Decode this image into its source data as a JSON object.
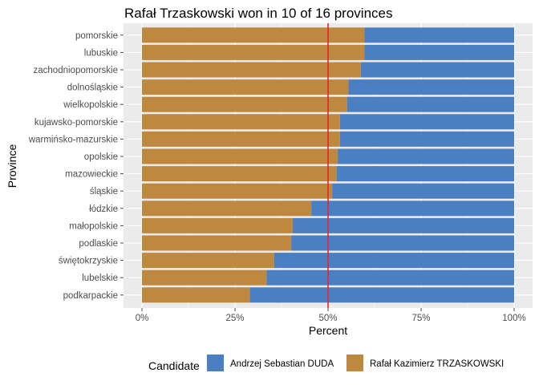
{
  "chart_data": {
    "type": "bar",
    "orientation": "horizontal",
    "stacked": true,
    "title": "Rafał Trzaskowski won in 10 of 16 provinces",
    "xlabel": "Percent",
    "ylabel": "Province",
    "xlim": [
      0,
      1
    ],
    "x_ticks": [
      "0%",
      "25%",
      "50%",
      "75%",
      "100%"
    ],
    "x_tick_values": [
      0,
      0.25,
      0.5,
      0.75,
      1
    ],
    "reference_line": {
      "x": 0.5,
      "color": "#e8232a"
    },
    "grid": true,
    "legend_position": "bottom",
    "legend_title": "Candidate",
    "categories": [
      "pomorskie",
      "lubuskie",
      "zachodniopomorskie",
      "dolnośląskie",
      "wielkopolskie",
      "kujawsko-pomorskie",
      "warmińsko-mazurskie",
      "opolskie",
      "mazowieckie",
      "śląskie",
      "łódzkie",
      "małopolskie",
      "podlaskie",
      "świętokrzyskie",
      "lubelskie",
      "podkarpackie"
    ],
    "series": [
      {
        "name": "Rafał Kazimierz TRZASKOWSKI",
        "color": "#bf883f",
        "values": [
          0.598,
          0.598,
          0.588,
          0.555,
          0.551,
          0.532,
          0.532,
          0.526,
          0.523,
          0.511,
          0.455,
          0.405,
          0.401,
          0.355,
          0.335,
          0.29
        ]
      },
      {
        "name": "Andrzej Sebastian DUDA",
        "color": "#4b7fc4",
        "values": [
          0.402,
          0.402,
          0.412,
          0.445,
          0.449,
          0.468,
          0.468,
          0.474,
          0.477,
          0.489,
          0.545,
          0.595,
          0.599,
          0.645,
          0.665,
          0.71
        ]
      }
    ],
    "legend_order": [
      "Andrzej Sebastian DUDA",
      "Rafał Kazimierz TRZASKOWSKI"
    ]
  },
  "colors": {
    "panel_background": "#ebebeb",
    "grid": "#ffffff",
    "tick_text": "#4d4d4d"
  }
}
